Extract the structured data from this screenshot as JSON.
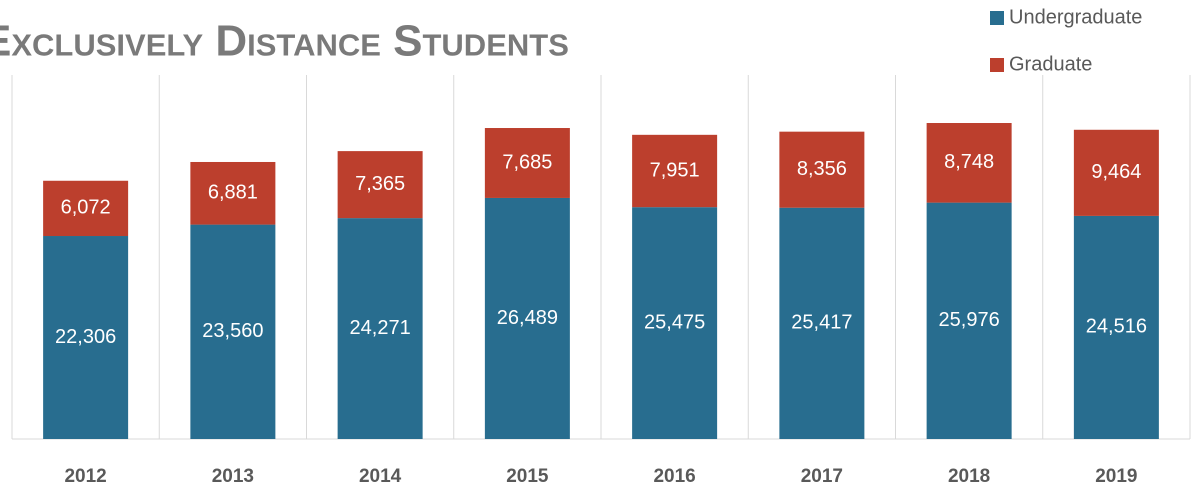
{
  "chart_data": {
    "type": "stacked_bar",
    "title": "Exclusively Distance Students",
    "categories": [
      "2012",
      "2013",
      "2014",
      "2015",
      "2016",
      "2017",
      "2018",
      "2019"
    ],
    "series": [
      {
        "name": "Undergraduate",
        "color": "#286d8f",
        "values": [
          22306,
          23560,
          24271,
          26489,
          25475,
          25417,
          25976,
          24516
        ],
        "value_labels": [
          "22,306",
          "23,560",
          "24,271",
          "26,489",
          "25,475",
          "25,417",
          "25,976",
          "24,516"
        ]
      },
      {
        "name": "Graduate",
        "color": "#bc3f2d",
        "values": [
          6072,
          6881,
          7365,
          7685,
          7951,
          8356,
          8748,
          9464
        ],
        "value_labels": [
          "6,072",
          "6,881",
          "7,365",
          "7,685",
          "7,951",
          "8,356",
          "8,748",
          "9,464"
        ]
      }
    ],
    "ylim": [
      0,
      40000
    ],
    "legend": "top-right"
  }
}
